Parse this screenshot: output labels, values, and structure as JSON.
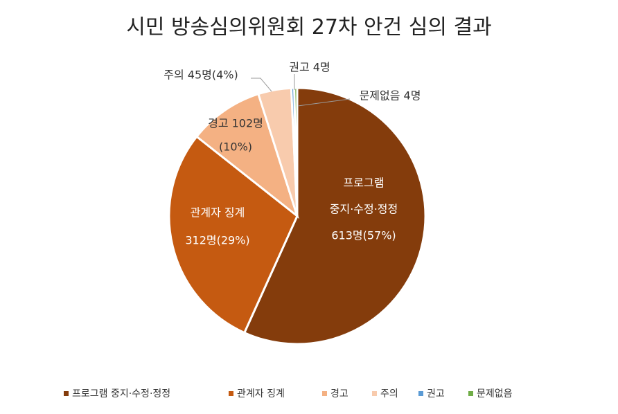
{
  "chart_data": {
    "type": "pie",
    "title": "시민 방송심의위원회 27차 안건 심의 결과",
    "categories": [
      "프로그램 중지·수정·정정",
      "관계자 징계",
      "경고",
      "주의",
      "권고",
      "문제없음"
    ],
    "values": [
      613,
      312,
      102,
      45,
      4,
      4
    ],
    "colors": [
      "#843C0C",
      "#C55A11",
      "#F4B183",
      "#F8CBAD",
      "#5B9BD5",
      "#70AD47"
    ],
    "data_labels": [
      [
        "프로그램",
        "중지·수정·정정",
        "613명(57%)"
      ],
      [
        "관계자 징계",
        "312명(29%)"
      ],
      [
        "경고 102명",
        "(10%)"
      ],
      [
        "주의 45명(4%)"
      ],
      [
        "권고 4명"
      ],
      [
        "문제없음 4명"
      ]
    ],
    "legend": {
      "position": "bottom",
      "entries": [
        "프로그램 중지·수정·정정",
        "관계자 징계",
        "경고",
        "주의",
        "권고",
        "문제없음"
      ]
    }
  }
}
